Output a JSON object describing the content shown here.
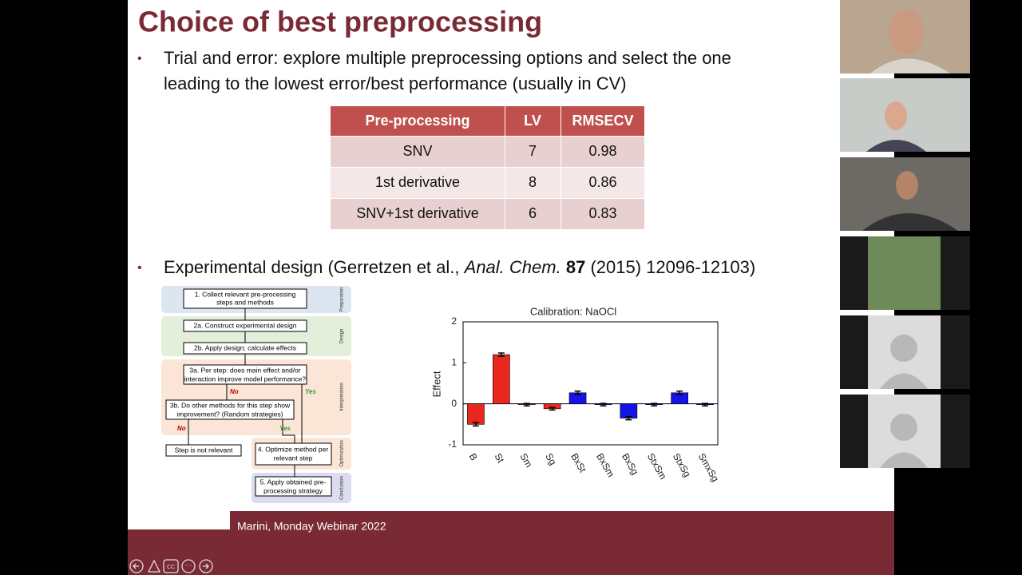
{
  "slide": {
    "title": "Choice of best preprocessing",
    "bullet1": {
      "line1": "Trial and error: explore multiple preprocessing options and select the one",
      "line2": "leading to the lowest error/best performance (usually in CV)"
    },
    "table": {
      "header": [
        "Pre-processing",
        "LV",
        "RMSECV"
      ],
      "rows": [
        [
          "SNV",
          "7",
          "0.98"
        ],
        [
          "1st derivative",
          "8",
          "0.86"
        ],
        [
          "SNV+1st derivative",
          "6",
          "0.83"
        ]
      ]
    },
    "bullet2": {
      "pre": "Experimental design (Gerretzen et al.,",
      "journal": "Anal. Chem.",
      "volume": "87",
      "post": "(2015) 12096-12103)"
    },
    "flowchart": {
      "stages": [
        "Preparation",
        "Design",
        "Interpretation",
        "Optimization",
        "Conclusion"
      ],
      "boxes": [
        [
          "1. Collect relevant pre-processing",
          "steps and methods"
        ],
        [
          "2a. Construct experimental design"
        ],
        [
          "2b. Apply design; calculate effects"
        ],
        [
          "3a. Per step: does main effect and/or",
          "interaction improve model performance?"
        ],
        [
          "3b. Do other methods for this step show",
          "improvement? (Random strategies)"
        ],
        [
          "Step is not relevant"
        ],
        [
          "4. Optimize method per",
          "relevant step"
        ],
        [
          "5. Apply obtained pre-",
          "processing strategy"
        ]
      ],
      "no": "No",
      "yes": "Yes"
    },
    "footer": "Marini, Monday Webinar 2022"
  },
  "chart_data": {
    "type": "bar",
    "title": "Calibration: NaOCl",
    "ylabel": "Effect",
    "categories": [
      "B",
      "St",
      "Sm",
      "Sg",
      "BxSt",
      "BxSm",
      "BxSg",
      "StxSm",
      "StxSg",
      "SmxSg"
    ],
    "values": [
      -0.5,
      1.2,
      -0.02,
      -0.12,
      0.27,
      -0.02,
      -0.35,
      -0.02,
      0.27,
      -0.02
    ],
    "errors": [
      0.04,
      0.04,
      0.03,
      0.03,
      0.04,
      0.03,
      0.04,
      0.03,
      0.04,
      0.03
    ],
    "colors": [
      "#e8281e",
      "#e8281e",
      "#e8281e",
      "#e8281e",
      "#1414e6",
      "#1414e6",
      "#1414e6",
      "#1414e6",
      "#1414e6",
      "#1414e6"
    ],
    "ylim": [
      -1,
      2
    ],
    "yticks": [
      -1,
      0,
      1,
      2
    ]
  }
}
